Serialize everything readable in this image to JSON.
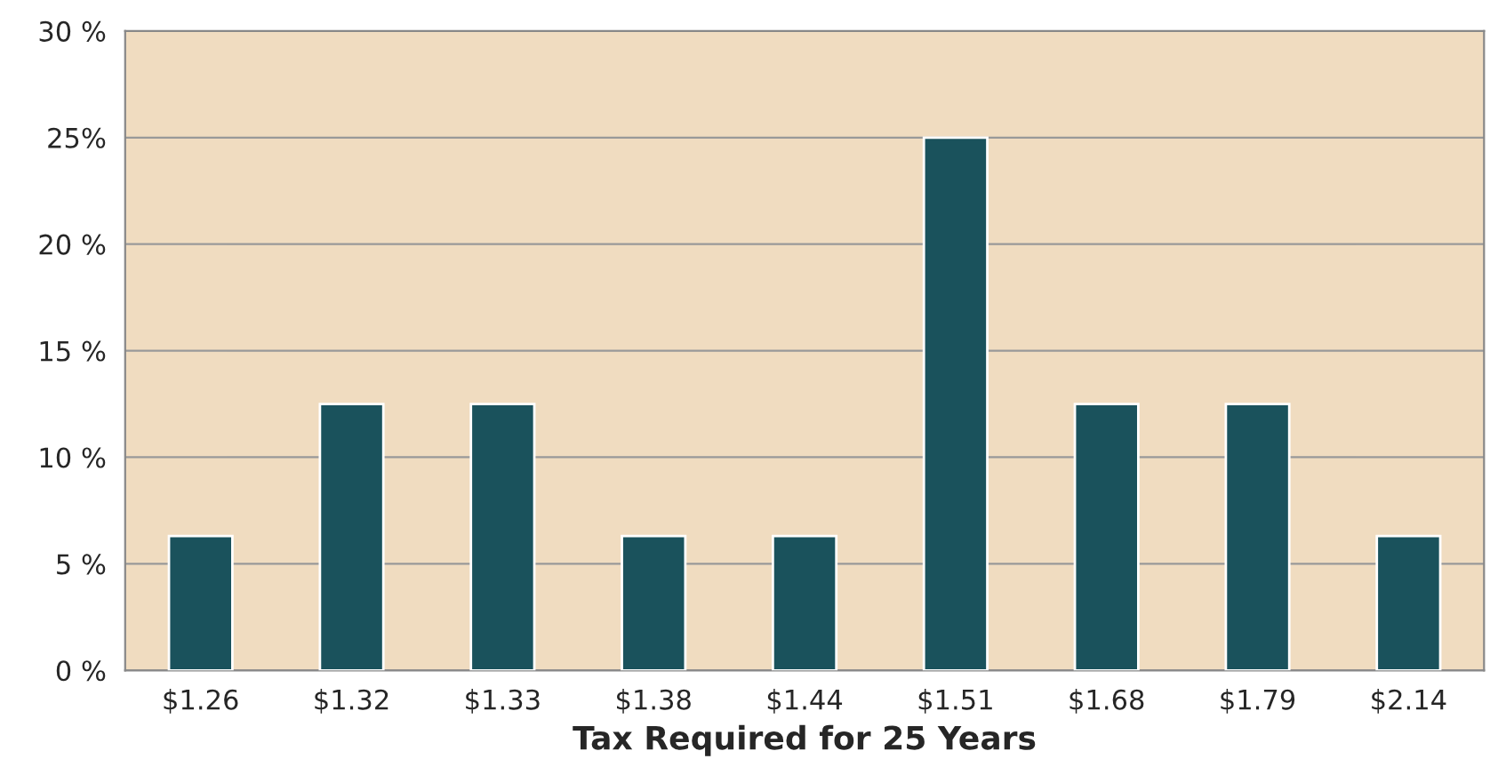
{
  "chart_data": {
    "type": "bar",
    "xlabel": "Tax Required for 25 Years",
    "categories": [
      "$1.26",
      "$1.32",
      "$1.33",
      "$1.38",
      "$1.44",
      "$1.51",
      "$1.68",
      "$1.79",
      "$2.14"
    ],
    "values": [
      6.3,
      12.5,
      12.5,
      6.3,
      6.3,
      25,
      12.5,
      12.5,
      6.3
    ],
    "color": "#1a525c",
    "ylim": [
      0,
      30
    ],
    "yticks": [
      {
        "value": 0,
        "label": "0 %"
      },
      {
        "value": 5,
        "label": "5 %"
      },
      {
        "value": 10,
        "label": "10 %"
      },
      {
        "value": 15,
        "label": "15 %"
      },
      {
        "value": 20,
        "label": "20 %"
      },
      {
        "value": 25,
        "label": "25%"
      },
      {
        "value": 30,
        "label": "30 %"
      }
    ],
    "grid": "y"
  }
}
